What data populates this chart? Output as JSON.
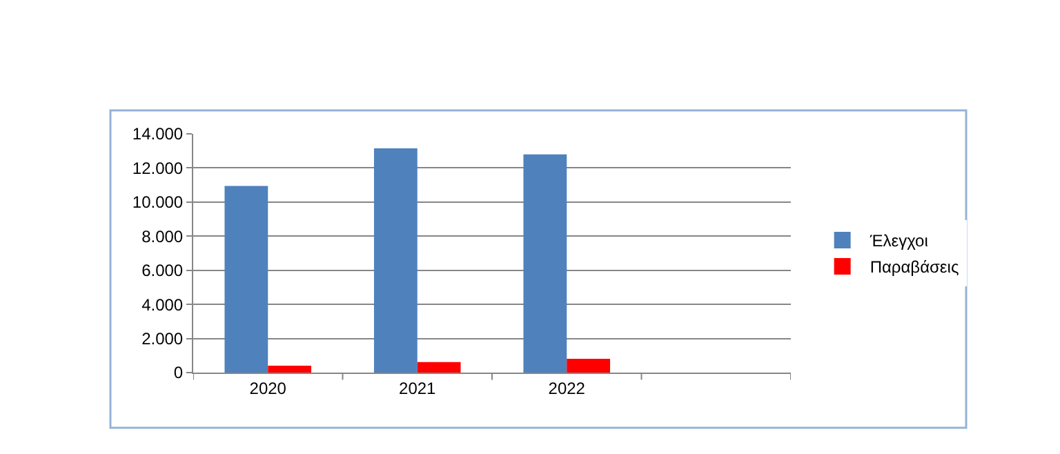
{
  "chart_data": {
    "type": "bar",
    "categories": [
      "2020",
      "2021",
      "2022",
      null
    ],
    "series": [
      {
        "name": "Έλεγχοι",
        "color": "#4f81bd",
        "values": [
          10950,
          13150,
          12800,
          null
        ]
      },
      {
        "name": "Παραβάσεις",
        "color": "#ff0000",
        "values": [
          400,
          620,
          810,
          null
        ]
      }
    ],
    "ylim": [
      0,
      14000
    ],
    "yticks": [
      0,
      {
        "value": 2000,
        "label": "2.000"
      },
      {
        "value": 4000,
        "label": "4.000"
      },
      {
        "value": 6000,
        "label": "6.000"
      },
      {
        "value": 8000,
        "label": "8.000"
      },
      {
        "value": 10000,
        "label": "10.000"
      },
      {
        "value": 12000,
        "label": "12.000"
      },
      {
        "value": 14000,
        "label": "14.000"
      }
    ],
    "grid": "y",
    "legend": "right"
  }
}
